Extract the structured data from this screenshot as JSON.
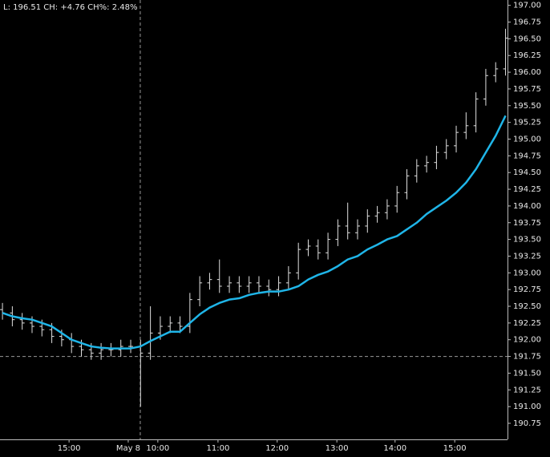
{
  "chart_data": {
    "type": "ohlc",
    "title": "L: 196.51 CH: +4.76 CH%: 2.48%",
    "x": [
      0,
      1,
      2,
      3,
      4,
      5,
      6,
      7,
      8,
      9,
      10,
      11,
      12,
      13,
      14,
      15,
      16,
      17,
      18,
      19,
      20,
      21,
      22,
      23,
      24,
      25,
      26,
      27,
      28,
      29,
      30,
      31,
      32,
      33,
      34,
      35,
      36,
      37,
      38,
      39,
      40,
      41,
      42,
      43,
      44,
      45,
      46,
      47,
      48,
      49,
      50,
      51
    ],
    "open": [
      192.45,
      192.4,
      192.3,
      192.25,
      192.2,
      192.15,
      192.05,
      192.0,
      191.9,
      191.85,
      191.8,
      191.85,
      191.85,
      191.9,
      191.9,
      191.8,
      192.1,
      192.2,
      192.25,
      192.2,
      192.6,
      192.85,
      192.9,
      192.8,
      192.85,
      192.8,
      192.85,
      192.8,
      192.75,
      192.85,
      193.0,
      193.35,
      193.4,
      193.3,
      193.5,
      193.7,
      193.6,
      193.7,
      193.85,
      193.9,
      194.0,
      194.2,
      194.45,
      194.6,
      194.65,
      194.8,
      194.9,
      195.1,
      195.2,
      195.6,
      195.95,
      196.05
    ],
    "high": [
      192.55,
      192.5,
      192.4,
      192.35,
      192.3,
      192.25,
      192.15,
      192.1,
      192.0,
      191.95,
      191.95,
      191.95,
      192.0,
      192.0,
      192.0,
      192.5,
      192.35,
      192.35,
      192.35,
      192.7,
      192.95,
      193.0,
      193.2,
      192.95,
      192.95,
      192.95,
      192.95,
      192.9,
      192.95,
      193.1,
      193.45,
      193.5,
      193.5,
      193.6,
      193.8,
      194.05,
      193.8,
      193.95,
      194.0,
      194.1,
      194.3,
      194.55,
      194.7,
      194.75,
      194.9,
      195.0,
      195.2,
      195.4,
      195.7,
      196.05,
      196.15,
      196.65
    ],
    "low": [
      192.3,
      192.2,
      192.15,
      192.1,
      192.05,
      191.95,
      191.9,
      191.8,
      191.75,
      191.7,
      191.7,
      191.75,
      191.75,
      191.8,
      191.0,
      191.7,
      192.0,
      192.1,
      192.1,
      192.1,
      192.5,
      192.75,
      192.7,
      192.7,
      192.7,
      192.7,
      192.7,
      192.65,
      192.65,
      192.75,
      192.9,
      193.25,
      193.2,
      193.2,
      193.4,
      193.5,
      193.5,
      193.6,
      193.75,
      193.8,
      193.9,
      194.1,
      194.35,
      194.5,
      194.55,
      194.7,
      194.8,
      195.0,
      195.1,
      195.5,
      195.85,
      195.95
    ],
    "close": [
      192.4,
      192.3,
      192.25,
      192.2,
      192.15,
      192.05,
      192.0,
      191.9,
      191.85,
      191.8,
      191.85,
      191.85,
      191.9,
      191.9,
      191.8,
      192.1,
      192.2,
      192.25,
      192.2,
      192.6,
      192.85,
      192.9,
      192.8,
      192.85,
      192.8,
      192.85,
      192.8,
      192.75,
      192.85,
      193.0,
      193.35,
      193.4,
      193.3,
      193.5,
      193.7,
      193.6,
      193.7,
      193.85,
      193.9,
      194.0,
      194.2,
      194.45,
      194.6,
      194.65,
      194.8,
      194.9,
      195.1,
      195.2,
      195.6,
      195.95,
      196.05,
      196.51
    ],
    "color": "#e0e0e0",
    "overlay": {
      "type": "line",
      "color": "#1fb5e8",
      "values": [
        192.4,
        192.35,
        192.32,
        192.3,
        192.25,
        192.2,
        192.1,
        192.0,
        191.95,
        191.9,
        191.88,
        191.87,
        191.87,
        191.87,
        191.9,
        191.98,
        192.05,
        192.12,
        192.12,
        192.25,
        192.38,
        192.48,
        192.55,
        192.6,
        192.62,
        192.67,
        192.7,
        192.72,
        192.72,
        192.75,
        192.8,
        192.9,
        192.97,
        193.02,
        193.1,
        193.2,
        193.25,
        193.35,
        193.42,
        193.5,
        193.55,
        193.65,
        193.75,
        193.88,
        193.98,
        194.08,
        194.2,
        194.35,
        194.55,
        194.8,
        195.05,
        195.35
      ]
    },
    "xlim": [
      -0.25,
      51.2
    ],
    "xticks": [
      {
        "value": 6.75,
        "label": "15:00"
      },
      {
        "value": 12.75,
        "label": "May 8"
      },
      {
        "value": 15.75,
        "label": "10:00"
      },
      {
        "value": 21.85,
        "label": "11:00"
      },
      {
        "value": 27.85,
        "label": "12:00"
      },
      {
        "value": 33.9,
        "label": "13:00"
      },
      {
        "value": 39.8,
        "label": "14:00"
      },
      {
        "value": 45.85,
        "label": "15:00"
      }
    ],
    "ylim": [
      190.51,
      197.08
    ],
    "yticks": [
      190.75,
      {
        "value": 191,
        "label": "191.00"
      },
      191.25,
      {
        "value": 191.5,
        "label": "191.50"
      },
      191.75,
      {
        "value": 192,
        "label": "192.00"
      },
      192.25,
      {
        "value": 192.5,
        "label": "192.50"
      },
      192.75,
      {
        "value": 193,
        "label": "193.00"
      },
      193.25,
      {
        "value": 193.5,
        "label": "193.50"
      },
      193.75,
      {
        "value": 194,
        "label": "194.00"
      },
      194.25,
      {
        "value": 194.5,
        "label": "194.50"
      },
      194.75,
      {
        "value": 195,
        "label": "195.00"
      },
      195.25,
      {
        "value": 195.5,
        "label": "195.50"
      },
      195.75,
      {
        "value": 196,
        "label": "196.00"
      },
      196.25,
      {
        "value": 196.5,
        "label": "196.50"
      },
      196.75,
      {
        "value": 197,
        "label": "197.00"
      }
    ],
    "crosshair": {
      "x": 13.97,
      "y": 191.75
    }
  }
}
